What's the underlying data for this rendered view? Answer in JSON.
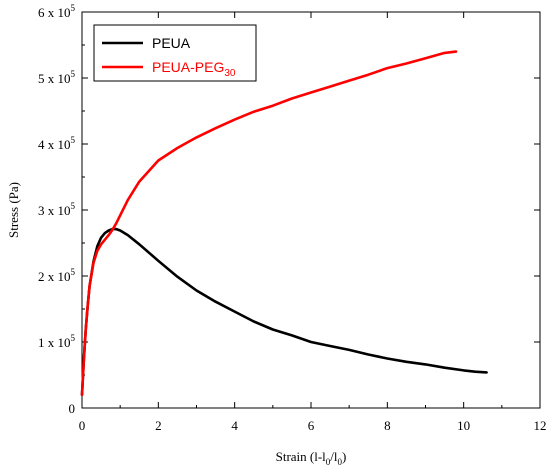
{
  "chart_data": {
    "type": "line",
    "title": "",
    "xlabel": {
      "text": "Strain (l-l",
      "sub1": "0",
      "mid": "/l",
      "sub2": "0",
      "end": ")"
    },
    "ylabel": "Stress (Pa)",
    "xlim": [
      0,
      12
    ],
    "ylim": [
      0,
      600000
    ],
    "x_ticks": [
      "0",
      "2",
      "4",
      "6",
      "8",
      "10",
      "12"
    ],
    "x_tick_values": [
      0,
      2,
      4,
      6,
      8,
      10,
      12
    ],
    "y_ticks": [
      {
        "value": 0,
        "mantissa": "0",
        "exponent": ""
      },
      {
        "value": 100000,
        "mantissa": "1 x 10",
        "exponent": "5"
      },
      {
        "value": 200000,
        "mantissa": "2 x 10",
        "exponent": "5"
      },
      {
        "value": 300000,
        "mantissa": "3 x 10",
        "exponent": "5"
      },
      {
        "value": 400000,
        "mantissa": "4 x 10",
        "exponent": "5"
      },
      {
        "value": 500000,
        "mantissa": "5 x 10",
        "exponent": "5"
      },
      {
        "value": 600000,
        "mantissa": "6 x 10",
        "exponent": "5"
      }
    ],
    "grid": false,
    "legend_position": "top-left",
    "series": [
      {
        "name": "PEUA",
        "legend_main": "PEUA",
        "legend_sub": "",
        "color": "#000000",
        "x": [
          0,
          0.05,
          0.1,
          0.15,
          0.2,
          0.3,
          0.4,
          0.5,
          0.6,
          0.7,
          0.8,
          0.9,
          1.0,
          1.2,
          1.5,
          2.0,
          2.5,
          3.0,
          3.5,
          4.0,
          4.5,
          5.0,
          5.5,
          6.0,
          6.5,
          7.0,
          7.5,
          8.0,
          8.5,
          9.0,
          9.5,
          10.0,
          10.3,
          10.6
        ],
        "y": [
          20000,
          75000,
          120000,
          155000,
          185000,
          222000,
          245000,
          258000,
          265000,
          269000,
          271000,
          271000,
          269000,
          262000,
          248000,
          223000,
          199000,
          178000,
          161000,
          146000,
          131000,
          119000,
          110000,
          100000,
          94000,
          88000,
          81000,
          75000,
          70000,
          66000,
          61000,
          57000,
          55000,
          54000
        ]
      },
      {
        "name": "PEUA-PEG30",
        "legend_main": "PEUA-PEG",
        "legend_sub": "30",
        "color": "#ff0000",
        "x": [
          0,
          0.05,
          0.1,
          0.15,
          0.2,
          0.3,
          0.4,
          0.5,
          0.6,
          0.7,
          0.8,
          0.9,
          1.0,
          1.2,
          1.5,
          2.0,
          2.5,
          3.0,
          3.5,
          4.0,
          4.5,
          5.0,
          5.5,
          6.0,
          6.5,
          7.0,
          7.5,
          8.0,
          8.5,
          9.0,
          9.5,
          9.8
        ],
        "y": [
          20000,
          75000,
          120000,
          155000,
          185000,
          220000,
          238000,
          248000,
          255000,
          262000,
          270000,
          280000,
          292000,
          315000,
          343000,
          375000,
          394000,
          410000,
          424000,
          437000,
          449000,
          458000,
          469000,
          478000,
          487000,
          496000,
          505000,
          515000,
          522000,
          530000,
          538000,
          540000
        ]
      }
    ]
  }
}
